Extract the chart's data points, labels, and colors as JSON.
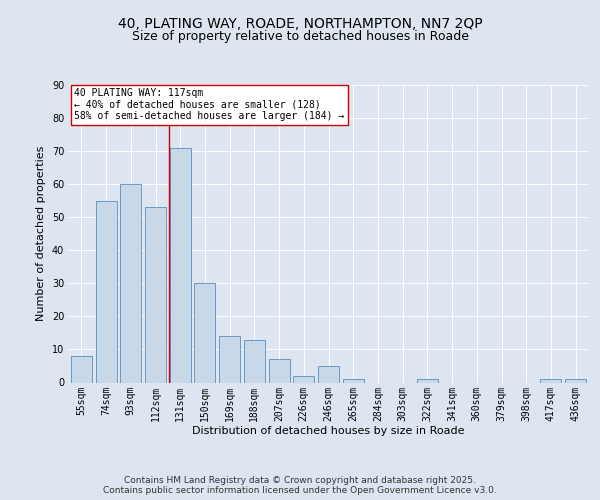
{
  "title_line1": "40, PLATING WAY, ROADE, NORTHAMPTON, NN7 2QP",
  "title_line2": "Size of property relative to detached houses in Roade",
  "xlabel": "Distribution of detached houses by size in Roade",
  "ylabel": "Number of detached properties",
  "bar_color": "#c8d8e8",
  "bar_edge_color": "#5a8fc0",
  "categories": [
    "55sqm",
    "74sqm",
    "93sqm",
    "112sqm",
    "131sqm",
    "150sqm",
    "169sqm",
    "188sqm",
    "207sqm",
    "226sqm",
    "246sqm",
    "265sqm",
    "284sqm",
    "303sqm",
    "322sqm",
    "341sqm",
    "360sqm",
    "379sqm",
    "398sqm",
    "417sqm",
    "436sqm"
  ],
  "values": [
    8,
    55,
    60,
    53,
    71,
    30,
    14,
    13,
    7,
    2,
    5,
    1,
    0,
    0,
    1,
    0,
    0,
    0,
    0,
    1,
    1
  ],
  "vline_x": 3.55,
  "vline_color": "#cc0000",
  "annotation_text": "40 PLATING WAY: 117sqm\n← 40% of detached houses are smaller (128)\n58% of semi-detached houses are larger (184) →",
  "annotation_box_color": "#ffffff",
  "annotation_box_edge": "#cc0000",
  "ylim": [
    0,
    90
  ],
  "yticks": [
    0,
    10,
    20,
    30,
    40,
    50,
    60,
    70,
    80,
    90
  ],
  "background_color": "#dde6f0",
  "plot_bg_color": "#dde6f0",
  "footer_text": "Contains HM Land Registry data © Crown copyright and database right 2025.\nContains public sector information licensed under the Open Government Licence v3.0.",
  "title_fontsize": 10,
  "subtitle_fontsize": 9,
  "axis_label_fontsize": 8,
  "tick_fontsize": 7,
  "footer_fontsize": 6.5,
  "annotation_fontsize": 7
}
